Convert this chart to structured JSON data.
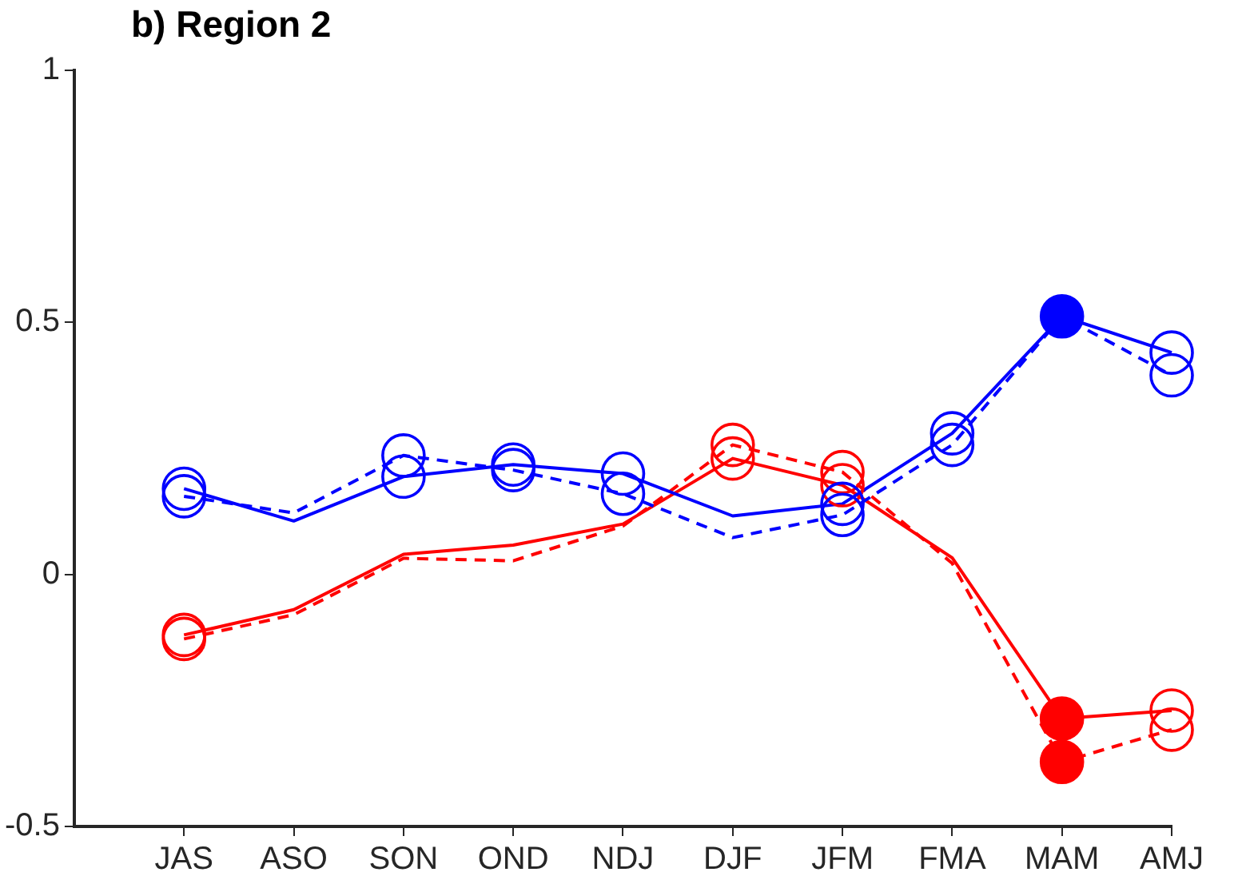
{
  "chart_data": {
    "type": "line",
    "title": "b) Region 2",
    "categories": [
      "JAS",
      "ASO",
      "SON",
      "OND",
      "NDJ",
      "DJF",
      "JFM",
      "FMA",
      "MAM",
      "AMJ"
    ],
    "ylim": [
      -0.5,
      1
    ],
    "yticks": [
      -0.5,
      0,
      0.5,
      1
    ],
    "grid": false,
    "legend": false,
    "marker": "none",
    "series": [
      {
        "color": "#0000ff",
        "line_style": "solid",
        "values": [
          0.17,
          0.106,
          0.194,
          0.218,
          0.2,
          0.116,
          0.14,
          0.28,
          0.512,
          0.44
        ]
      },
      {
        "color": "#0000ff",
        "line_style": "dashed",
        "values": [
          0.155,
          0.122,
          0.236,
          0.207,
          0.16,
          0.073,
          0.118,
          0.257,
          0.512,
          0.395
        ]
      },
      {
        "color": "#ff0000",
        "line_style": "solid",
        "values": [
          -0.12,
          -0.07,
          0.04,
          0.058,
          0.1,
          0.23,
          0.177,
          0.033,
          -0.286,
          -0.27
        ]
      },
      {
        "color": "#ff0000",
        "line_style": "dashed",
        "values": [
          -0.128,
          -0.08,
          0.032,
          0.027,
          0.096,
          0.257,
          0.203,
          0.022,
          -0.372,
          -0.308
        ]
      },
      {
        "type": "scatter",
        "marker": "circle",
        "color": "#0000ff",
        "values": [
          0.17,
          null,
          0.194,
          0.218,
          0.2,
          null,
          0.14,
          0.28,
          null,
          0.44
        ]
      },
      {
        "type": "scatter",
        "marker": "circle",
        "color": "#0000ff",
        "values": [
          0.155,
          null,
          0.236,
          0.207,
          0.16,
          null,
          0.118,
          0.257,
          null,
          0.395
        ]
      },
      {
        "type": "scatter",
        "marker": "circle",
        "color": "#ff0000",
        "values": [
          -0.12,
          null,
          null,
          null,
          null,
          0.23,
          0.177,
          null,
          null,
          -0.27
        ]
      },
      {
        "type": "scatter",
        "marker": "circle",
        "color": "#ff0000",
        "values": [
          -0.128,
          null,
          null,
          null,
          null,
          0.257,
          0.203,
          null,
          null,
          -0.308
        ]
      },
      {
        "type": "scatter",
        "marker": "circle",
        "color": "#0000ff",
        "values": [
          null,
          null,
          null,
          null,
          null,
          null,
          null,
          null,
          0.512,
          null
        ]
      },
      {
        "type": "scatter",
        "marker": "circle",
        "color": "#ff0000",
        "values": [
          null,
          null,
          null,
          null,
          null,
          null,
          null,
          null,
          -0.286,
          null
        ]
      },
      {
        "type": "scatter",
        "marker": "circle",
        "color": "#ff0000",
        "values": [
          null,
          null,
          null,
          null,
          null,
          null,
          null,
          null,
          -0.372,
          null
        ]
      }
    ]
  }
}
